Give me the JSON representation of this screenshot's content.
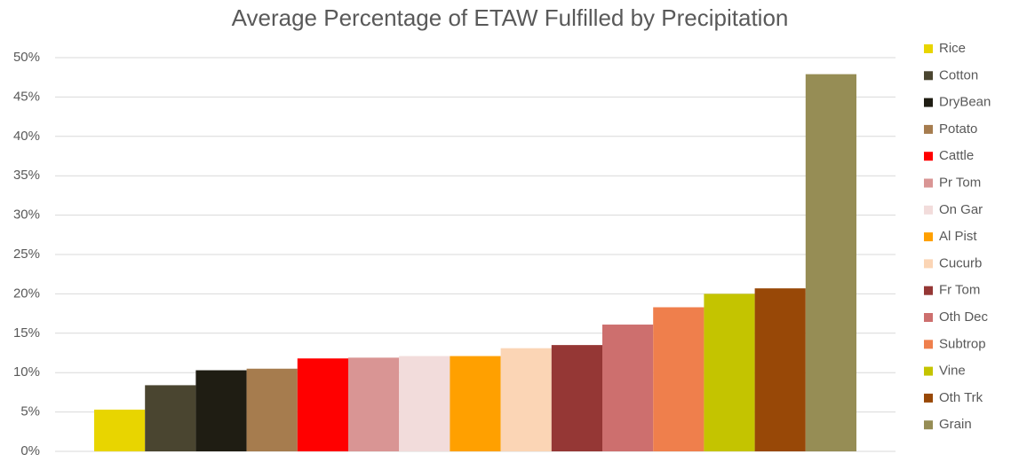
{
  "chart_data": {
    "type": "bar",
    "title": "Average Percentage of ETAW Fulfilled by Precipitation",
    "series": [
      {
        "name": "Rice",
        "color": "#e8d500",
        "values": [
          5.3
        ]
      },
      {
        "name": "Cotton",
        "color": "#4a4530",
        "values": [
          8.4
        ]
      },
      {
        "name": "DryBean",
        "color": "#1f1d13",
        "values": [
          10.3
        ]
      },
      {
        "name": "Potato",
        "color": "#a67c4e",
        "values": [
          10.5
        ]
      },
      {
        "name": "Cattle",
        "color": "#ff0000",
        "values": [
          11.8
        ]
      },
      {
        "name": "Pr Tom",
        "color": "#d99594",
        "values": [
          11.9
        ]
      },
      {
        "name": "On Gar",
        "color": "#f2dcdb",
        "values": [
          12.1
        ]
      },
      {
        "name": "Al Pist",
        "color": "#ffa000",
        "values": [
          12.1
        ]
      },
      {
        "name": "Cucurb",
        "color": "#fbd5b5",
        "values": [
          13.1
        ]
      },
      {
        "name": "Fr Tom",
        "color": "#953735",
        "values": [
          13.5
        ]
      },
      {
        "name": "Oth Dec",
        "color": "#cd6f6e",
        "values": [
          16.1
        ]
      },
      {
        "name": "Subtrop",
        "color": "#ef7f4c",
        "values": [
          18.3
        ]
      },
      {
        "name": "Vine",
        "color": "#c4c400",
        "values": [
          20.0
        ]
      },
      {
        "name": "Oth Trk",
        "color": "#984807",
        "values": [
          20.7
        ]
      },
      {
        "name": "Grain",
        "color": "#968d55",
        "values": [
          47.9
        ]
      }
    ],
    "ylim": [
      0,
      50
    ],
    "yticks": [
      {
        "value": 0,
        "label": "0%"
      },
      {
        "value": 5,
        "label": "5%"
      },
      {
        "value": 10,
        "label": "10%"
      },
      {
        "value": 15,
        "label": "15%"
      },
      {
        "value": 20,
        "label": "20%"
      },
      {
        "value": 25,
        "label": "25%"
      },
      {
        "value": 30,
        "label": "30%"
      },
      {
        "value": 35,
        "label": "35%"
      },
      {
        "value": 40,
        "label": "40%"
      },
      {
        "value": 45,
        "label": "45%"
      },
      {
        "value": 50,
        "label": "50%"
      }
    ],
    "grid": true,
    "legend": "right"
  }
}
